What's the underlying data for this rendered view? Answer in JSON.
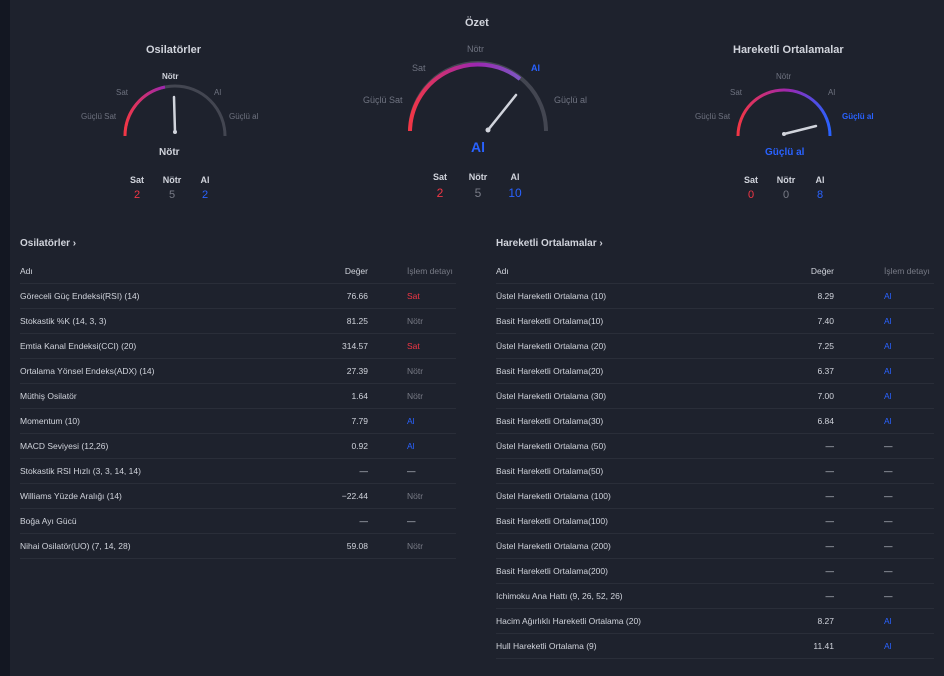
{
  "summary": {
    "title": "Özet",
    "labels": {
      "strong_sell": "Güçlü Sat",
      "sell": "Sat",
      "neutral": "Nötr",
      "buy": "Al",
      "strong_buy": "Güçlü al"
    },
    "result": "Al",
    "counts": {
      "sell": "2",
      "neutral": "5",
      "buy": "10"
    }
  },
  "osc_gauge": {
    "title": "Osilatörler",
    "labels": {
      "strong_sell": "Güçlü Sat",
      "sell": "Sat",
      "neutral": "Nötr",
      "buy": "Al",
      "strong_buy": "Güçlü al"
    },
    "result": "Nötr",
    "counts": {
      "sell": "2",
      "neutral": "5",
      "buy": "2"
    }
  },
  "ma_gauge": {
    "title": "Hareketli Ortalamalar",
    "labels": {
      "strong_sell": "Güçlü Sat",
      "sell": "Sat",
      "neutral": "Nötr",
      "buy": "Al",
      "strong_buy": "Güçlü al"
    },
    "result": "Güçlü al",
    "counts": {
      "sell": "0",
      "neutral": "0",
      "buy": "8"
    }
  },
  "count_headers": {
    "sell": "Sat",
    "neutral": "Nötr",
    "buy": "Al"
  },
  "colors": {
    "sell": "#f23645",
    "neutral": "#787b86",
    "buy": "#2962ff"
  },
  "oscillators_table": {
    "title": "Osilatörler ›",
    "headers": {
      "name": "Adı",
      "value": "Değer",
      "action": "İşlem detayı"
    },
    "rows": [
      {
        "name": "Göreceli Güç Endeksi(RSI) (14)",
        "value": "76.66",
        "action": "Sat",
        "tone": "sell"
      },
      {
        "name": "Stokastik %K (14, 3, 3)",
        "value": "81.25",
        "action": "Nötr",
        "tone": "neutral"
      },
      {
        "name": "Emtia Kanal Endeksi(CCI) (20)",
        "value": "314.57",
        "action": "Sat",
        "tone": "sell"
      },
      {
        "name": "Ortalama Yönsel Endeks(ADX) (14)",
        "value": "27.39",
        "action": "Nötr",
        "tone": "neutral"
      },
      {
        "name": "Müthiş Osilatör",
        "value": "1.64",
        "action": "Nötr",
        "tone": "neutral"
      },
      {
        "name": "Momentum (10)",
        "value": "7.79",
        "action": "Al",
        "tone": "buy"
      },
      {
        "name": "MACD Seviyesi (12,26)",
        "value": "0.92",
        "action": "Al",
        "tone": "buy"
      },
      {
        "name": "Stokastik RSI Hızlı (3, 3, 14, 14)",
        "value": "—",
        "action": "—",
        "tone": "dash"
      },
      {
        "name": "Williams Yüzde Aralığı (14)",
        "value": "−22.44",
        "action": "Nötr",
        "tone": "neutral"
      },
      {
        "name": "Boğa Ayı Gücü",
        "value": "—",
        "action": "—",
        "tone": "dash"
      },
      {
        "name": "Nihai Osilatör(UO) (7, 14, 28)",
        "value": "59.08",
        "action": "Nötr",
        "tone": "neutral"
      }
    ]
  },
  "ma_table": {
    "title": "Hareketli Ortalamalar ›",
    "headers": {
      "name": "Adı",
      "value": "Değer",
      "action": "İşlem detayı"
    },
    "rows": [
      {
        "name": "Üstel Hareketli Ortalama (10)",
        "value": "8.29",
        "action": "Al",
        "tone": "buy"
      },
      {
        "name": "Basit Hareketli Ortalama(10)",
        "value": "7.40",
        "action": "Al",
        "tone": "buy"
      },
      {
        "name": "Üstel Hareketli Ortalama (20)",
        "value": "7.25",
        "action": "Al",
        "tone": "buy"
      },
      {
        "name": "Basit Hareketli Ortalama(20)",
        "value": "6.37",
        "action": "Al",
        "tone": "buy"
      },
      {
        "name": "Üstel Hareketli Ortalama (30)",
        "value": "7.00",
        "action": "Al",
        "tone": "buy"
      },
      {
        "name": "Basit Hareketli Ortalama(30)",
        "value": "6.84",
        "action": "Al",
        "tone": "buy"
      },
      {
        "name": "Üstel Hareketli Ortalama (50)",
        "value": "—",
        "action": "—",
        "tone": "dash"
      },
      {
        "name": "Basit Hareketli Ortalama(50)",
        "value": "—",
        "action": "—",
        "tone": "dash"
      },
      {
        "name": "Üstel Hareketli Ortalama (100)",
        "value": "—",
        "action": "—",
        "tone": "dash"
      },
      {
        "name": "Basit Hareketli Ortalama(100)",
        "value": "—",
        "action": "—",
        "tone": "dash"
      },
      {
        "name": "Üstel Hareketli Ortalama (200)",
        "value": "—",
        "action": "—",
        "tone": "dash"
      },
      {
        "name": "Basit Hareketli Ortalama(200)",
        "value": "—",
        "action": "—",
        "tone": "dash"
      },
      {
        "name": "Ichimoku Ana Hattı (9, 26, 52, 26)",
        "value": "—",
        "action": "—",
        "tone": "dash"
      },
      {
        "name": "Hacim Ağırlıklı Hareketli Ortalama (20)",
        "value": "8.27",
        "action": "Al",
        "tone": "buy"
      },
      {
        "name": "Hull Hareketli Ortalama (9)",
        "value": "11.41",
        "action": "Al",
        "tone": "buy"
      }
    ]
  }
}
